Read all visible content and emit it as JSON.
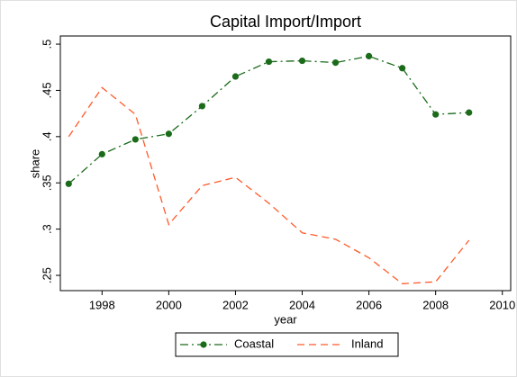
{
  "chart_data": {
    "type": "line",
    "title": "Capital Import/Import",
    "xlabel": "year",
    "ylabel": "share",
    "x": [
      1997,
      1998,
      1999,
      2000,
      2001,
      2002,
      2003,
      2004,
      2005,
      2006,
      2007,
      2008,
      2009
    ],
    "series": [
      {
        "name": "Coastal",
        "color": "#1a6b1a",
        "line_style": "dash-dot",
        "marker": "circle",
        "values": [
          0.349,
          0.381,
          0.397,
          0.403,
          0.433,
          0.465,
          0.481,
          0.482,
          0.48,
          0.487,
          0.474,
          0.424,
          0.426
        ]
      },
      {
        "name": "Inland",
        "color": "#ff5a2a",
        "line_style": "dash",
        "marker": "none",
        "values": [
          0.4,
          0.453,
          0.424,
          0.305,
          0.347,
          0.356,
          0.328,
          0.296,
          0.289,
          0.269,
          0.241,
          0.243,
          0.288
        ]
      }
    ],
    "xlim": [
      1996.75,
      2010.25
    ],
    "xticks": [
      1998,
      2000,
      2002,
      2004,
      2006,
      2008,
      2010
    ],
    "ylim": [
      0.2335,
      0.5088
    ],
    "yticks": [
      {
        "value": 0.25,
        "label": ".25"
      },
      {
        "value": 0.3,
        "label": ".3"
      },
      {
        "value": 0.35,
        "label": ".35"
      },
      {
        "value": 0.4,
        "label": ".4"
      },
      {
        "value": 0.45,
        "label": ".45"
      },
      {
        "value": 0.5,
        "label": ".5"
      }
    ],
    "grid": false,
    "legend_position": "bottom"
  }
}
